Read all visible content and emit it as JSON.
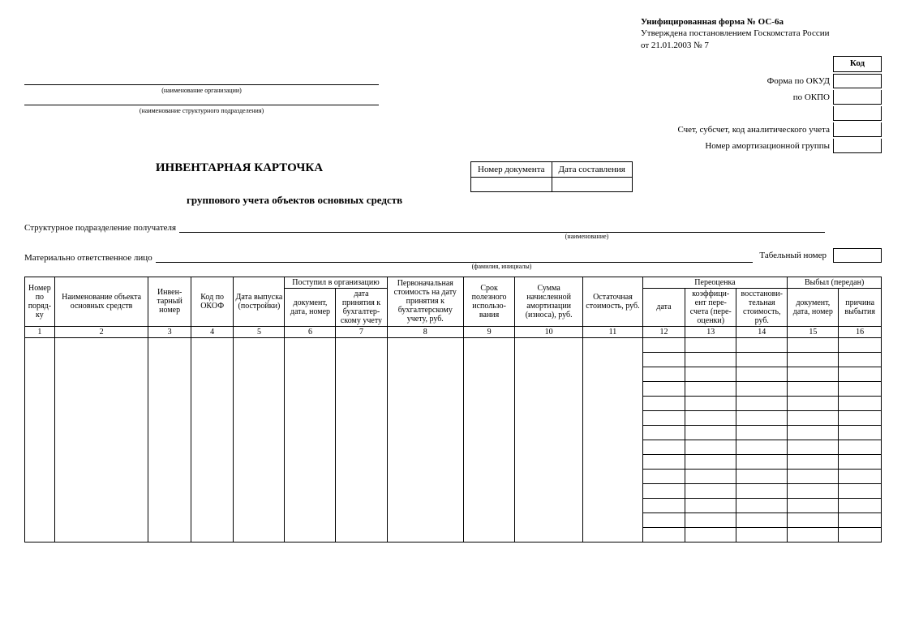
{
  "header": {
    "form_name": "Унифицированная форма № ОС-6а",
    "approved": "Утверждена постановлением Госкомстата России",
    "date_ref": "от 21.01.2003 № 7"
  },
  "codes": {
    "kod_label": "Код",
    "okud_label": "Форма по ОКУД",
    "okpo_label": "по ОКПО",
    "account_label": "Счет, субсчет, код аналитического учета",
    "amort_label": "Номер амортизационной группы"
  },
  "captions": {
    "org": "(наименование организации)",
    "dept": "(наименование структурного подразделения)",
    "name": "(наименование)",
    "fio": "(фамилия, инициалы)"
  },
  "title": {
    "line1": "ИНВЕНТАРНАЯ КАРТОЧКА",
    "line2": "группового учета объектов основных средств"
  },
  "docbox": {
    "num_label": "Номер документа",
    "date_label": "Дата составления"
  },
  "fields": {
    "recipient_dept": "Структурное подразделение получателя",
    "responsible": "Материально ответственное лицо",
    "tab_num": "Табельный номер"
  },
  "columns": {
    "c1": "Номер по поряд-ку",
    "c2": "Наименование объекта основных средств",
    "c3": "Инвен-тарный номер",
    "c4": "Код по ОКОФ",
    "c5": "Дата выпуска (постройки)",
    "c6_7_group": "Поступил в организацию",
    "c6": "документ, дата, номер",
    "c7": "дата принятия к бухгалтер-скому учету",
    "c8": "Первоначальная стоимость на дату принятия к бухгалтерскому учету, руб.",
    "c9": "Срок полезного использо-вания",
    "c10": "Сумма начисленной амортизации (износа), руб.",
    "c11": "Остаточная стоимость, руб.",
    "c12_14_group": "Переоценка",
    "c12": "дата",
    "c13": "коэффици-ент пере-счета (пере-оценки)",
    "c14": "восстанови-тельная стоимость, руб.",
    "c15_16_group": "Выбыл (передан)",
    "c15": "документ, дата, номер",
    "c16": "причина выбытия"
  },
  "colnums": [
    "1",
    "2",
    "3",
    "4",
    "5",
    "6",
    "7",
    "8",
    "9",
    "10",
    "11",
    "12",
    "13",
    "14",
    "15",
    "16"
  ],
  "layout": {
    "data_row_count": 14,
    "col_widths_pct": [
      3.5,
      11,
      5,
      5,
      6,
      6,
      6,
      9,
      6,
      8,
      7,
      5,
      6,
      6,
      6,
      5
    ]
  }
}
